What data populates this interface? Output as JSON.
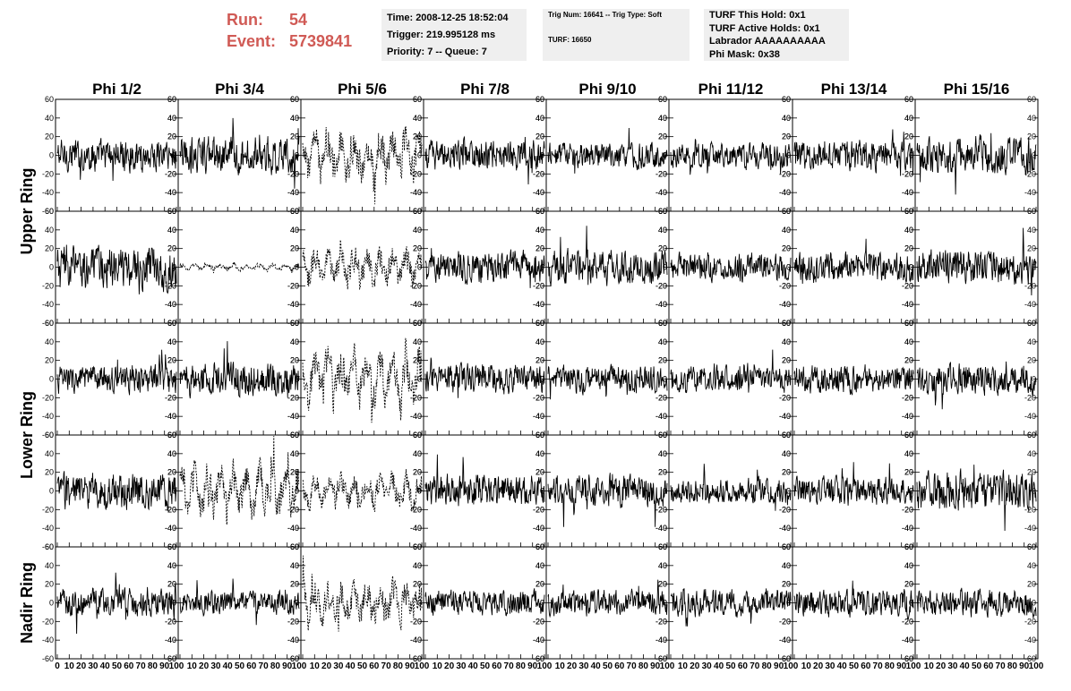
{
  "header": {
    "run_label": "Run:",
    "run_value": "54",
    "event_label": "Event:",
    "event_value": "5739841",
    "time_line": "Time: 2008-12-25 18:52:04",
    "trigger_line": "Trigger: 219.995128 ms",
    "priority_line": "Priority: 7 -- Queue: 7",
    "trig_line": "Trig Num: 16641 -- Trig Type: Soft",
    "turf_line": "TURF: 16650",
    "hold_line": "TURF This Hold: 0x1",
    "active_line": "TURF Active Holds: 0x1",
    "labrador_line": "Labrador AAAAAAAAAA",
    "phimask_line": "Phi Mask: 0x38"
  },
  "colors": {
    "run_text": "#d05a55",
    "info_bg": "#efefef",
    "trace": "#000000"
  },
  "chart_data": {
    "type": "line",
    "column_titles": [
      "Phi 1/2",
      "Phi 3/4",
      "Phi 5/6",
      "Phi 7/8",
      "Phi 9/10",
      "Phi 11/12",
      "Phi 13/14",
      "Phi 15/16"
    ],
    "row_titles": [
      {
        "label": "Upper Ring",
        "rows": [
          0,
          1
        ]
      },
      {
        "label": "Lower Ring",
        "rows": [
          2,
          3
        ]
      },
      {
        "label": "Nadir Ring",
        "rows": [
          4
        ]
      }
    ],
    "xlim": [
      0,
      100
    ],
    "ylim": [
      -60,
      60
    ],
    "x_ticks": [
      "0",
      "10",
      "20",
      "30",
      "40",
      "50",
      "60",
      "70",
      "80",
      "90",
      "100"
    ],
    "y_ticks": [
      "-60",
      "-40",
      "-20",
      "0",
      "20",
      "40",
      "60"
    ],
    "n_samples": 260,
    "channels": [
      [
        {
          "amp": 14,
          "dashed": false
        },
        {
          "amp": 16,
          "dashed": false
        },
        {
          "amp": 16,
          "dashed": true
        },
        {
          "amp": 13,
          "dashed": false
        },
        {
          "amp": 11,
          "dashed": false
        },
        {
          "amp": 11,
          "dashed": false
        },
        {
          "amp": 13,
          "dashed": false
        },
        {
          "amp": 16,
          "dashed": false
        }
      ],
      [
        {
          "amp": 18,
          "dashed": false
        },
        {
          "amp": 2,
          "dashed": true
        },
        {
          "amp": 12,
          "dashed": true
        },
        {
          "amp": 14,
          "dashed": false
        },
        {
          "amp": 15,
          "dashed": false
        },
        {
          "amp": 12,
          "dashed": false
        },
        {
          "amp": 13,
          "dashed": false
        },
        {
          "amp": 15,
          "dashed": false
        }
      ],
      [
        {
          "amp": 12,
          "dashed": false
        },
        {
          "amp": 15,
          "dashed": false
        },
        {
          "amp": 18,
          "dashed": true
        },
        {
          "amp": 13,
          "dashed": false
        },
        {
          "amp": 12,
          "dashed": false
        },
        {
          "amp": 11,
          "dashed": false
        },
        {
          "amp": 12,
          "dashed": false
        },
        {
          "amp": 13,
          "dashed": false
        }
      ],
      [
        {
          "amp": 16,
          "dashed": false
        },
        {
          "amp": 16,
          "dashed": true
        },
        {
          "amp": 11,
          "dashed": true
        },
        {
          "amp": 14,
          "dashed": false
        },
        {
          "amp": 14,
          "dashed": false
        },
        {
          "amp": 11,
          "dashed": false
        },
        {
          "amp": 12,
          "dashed": false
        },
        {
          "amp": 17,
          "dashed": false
        }
      ],
      [
        {
          "amp": 12,
          "dashed": false
        },
        {
          "amp": 10,
          "dashed": false
        },
        {
          "amp": 14,
          "dashed": true
        },
        {
          "amp": 11,
          "dashed": false
        },
        {
          "amp": 11,
          "dashed": false
        },
        {
          "amp": 12,
          "dashed": false
        },
        {
          "amp": 12,
          "dashed": false
        },
        {
          "amp": 12,
          "dashed": false
        }
      ]
    ]
  }
}
